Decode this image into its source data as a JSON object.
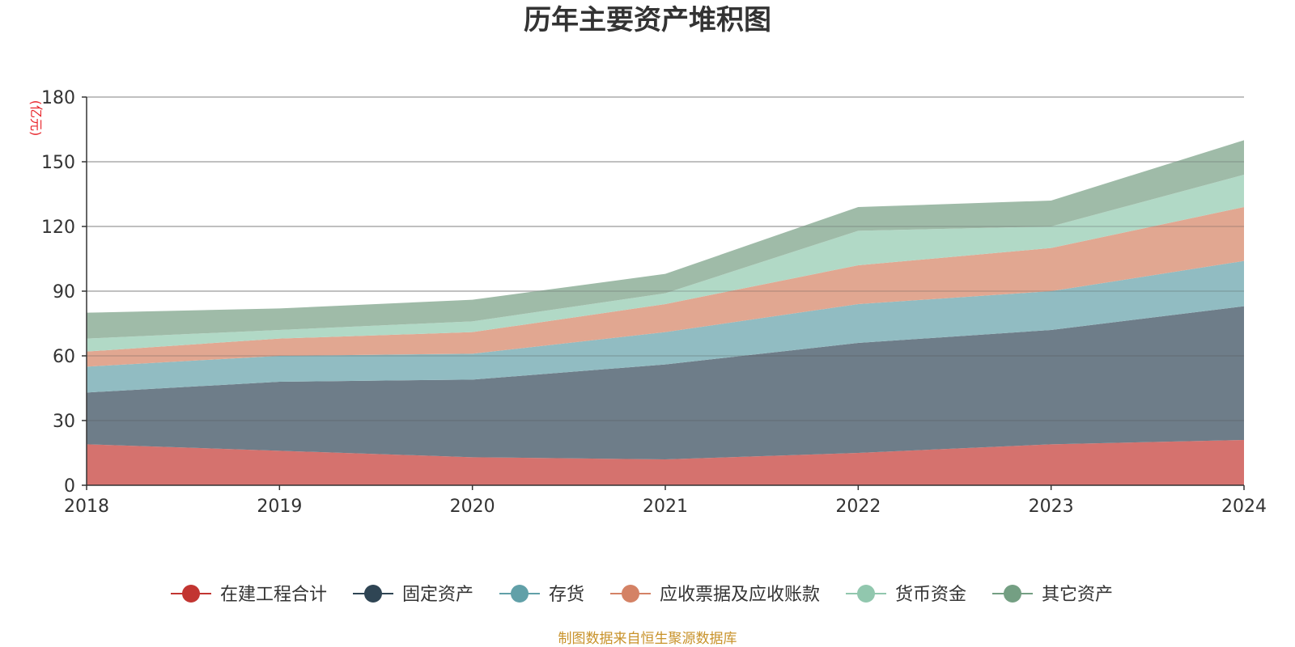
{
  "chart_data": {
    "type": "area",
    "stacked": true,
    "title": "历年主要资产堆积图",
    "unit_label": "(亿元)",
    "x": [
      "2018",
      "2019",
      "2020",
      "2021",
      "2022",
      "2023",
      "2024"
    ],
    "ylim": [
      0,
      180
    ],
    "yticks": [
      "0",
      "30",
      "60",
      "90",
      "120",
      "150",
      "180"
    ],
    "grid": true,
    "legend_position": "bottom",
    "series": [
      {
        "name": "在建工程合计",
        "color": "#c23531",
        "fill": "#d5726e",
        "values": [
          19,
          16,
          13,
          12,
          15,
          19,
          21
        ]
      },
      {
        "name": "固定资产",
        "color": "#2f4554",
        "fill": "#6e7d89",
        "values": [
          24,
          32,
          36,
          44,
          51,
          53,
          62
        ]
      },
      {
        "name": "存货",
        "color": "#61a0a8",
        "fill": "#91bcc2",
        "values": [
          12,
          12,
          12,
          15,
          18,
          18,
          21
        ]
      },
      {
        "name": "应收票据及应收账款",
        "color": "#d48265",
        "fill": "#e1a791",
        "values": [
          7,
          8,
          10,
          13,
          18,
          20,
          25
        ]
      },
      {
        "name": "货币资金",
        "color": "#91c7ae",
        "fill": "#b1d9c6",
        "values": [
          6,
          4,
          5,
          5,
          16,
          10,
          15
        ]
      },
      {
        "name": "其它资产",
        "color": "#749f83",
        "fill": "#9fbba8",
        "values": [
          12,
          10,
          10,
          9,
          11,
          12,
          16
        ]
      }
    ]
  },
  "footer": {
    "source": "制图数据来自恒生聚源数据库"
  }
}
